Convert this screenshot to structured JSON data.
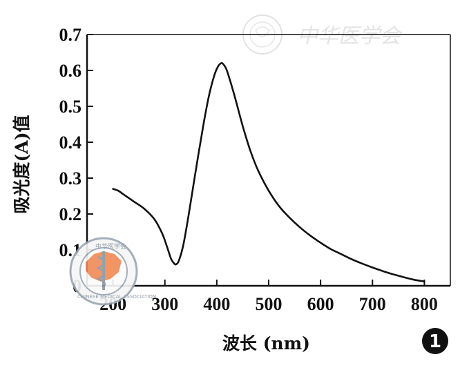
{
  "chart_data": {
    "type": "line",
    "title": "",
    "xlabel": "波长 (nm)",
    "ylabel": "吸光度(A)值",
    "xlim": [
      150,
      850
    ],
    "ylim": [
      0,
      0.7
    ],
    "x_ticks": [
      200,
      300,
      400,
      500,
      600,
      700,
      800
    ],
    "x_tick_labels": [
      "200",
      "300",
      "400",
      "500",
      "600",
      "700",
      "800"
    ],
    "y_ticks": [
      0,
      0.1,
      0.2,
      0.3,
      0.4,
      0.5,
      0.6,
      0.7
    ],
    "y_tick_labels": [
      "0",
      "0.1",
      "0.2",
      "0.3",
      "0.4",
      "0.5",
      "0.6",
      "0.7"
    ],
    "grid": false,
    "legend": "none",
    "line_color": "#111111",
    "series": [
      {
        "x": [
          200,
          210,
          220,
          240,
          260,
          280,
          295,
          305,
          312,
          318,
          322,
          327,
          335,
          345,
          355,
          365,
          375,
          385,
          395,
          402,
          408,
          412,
          418,
          425,
          435,
          450,
          465,
          480,
          500,
          520,
          540,
          560,
          580,
          600,
          620,
          640,
          660,
          680,
          700,
          720,
          740,
          760,
          780,
          800
        ],
        "y": [
          0.27,
          0.265,
          0.255,
          0.235,
          0.215,
          0.185,
          0.145,
          0.105,
          0.075,
          0.062,
          0.06,
          0.07,
          0.11,
          0.19,
          0.28,
          0.37,
          0.455,
          0.53,
          0.585,
          0.61,
          0.62,
          0.618,
          0.605,
          0.575,
          0.525,
          0.445,
          0.375,
          0.32,
          0.265,
          0.222,
          0.19,
          0.163,
          0.14,
          0.12,
          0.102,
          0.088,
          0.074,
          0.062,
          0.051,
          0.041,
          0.032,
          0.024,
          0.017,
          0.012
        ]
      }
    ]
  },
  "figure_number": "1",
  "watermark": {
    "text": "中华医学会",
    "logo_ring_text": "CHINESE MEDICAL ASSOCIATION",
    "logo_top_text": "中华医学会"
  }
}
